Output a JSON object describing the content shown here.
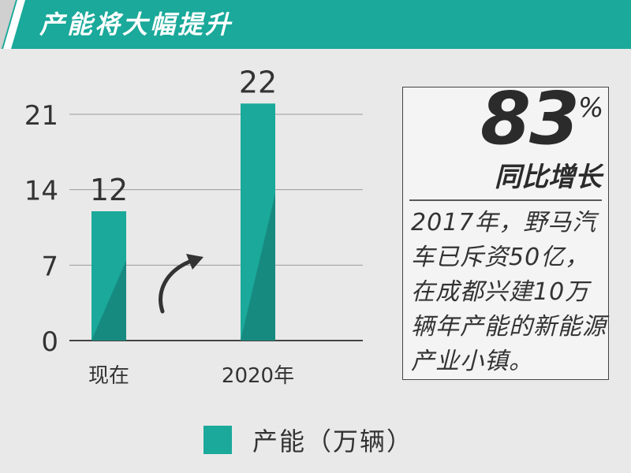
{
  "header": {
    "title": "产能将大幅提升",
    "color_primary": "#1aa99a"
  },
  "chart_data": {
    "type": "bar",
    "categories": [
      "现在",
      "2020年"
    ],
    "series": [
      {
        "name": "产能（万辆）",
        "values": [
          12,
          22
        ]
      }
    ],
    "data_labels": [
      "12",
      "22"
    ],
    "y_ticks": [
      "0",
      "7",
      "14",
      "21"
    ],
    "ylim": [
      0,
      21
    ],
    "grid": true,
    "legend_position": "bottom",
    "bar_color": "#1aa99a",
    "bar_shade_color": "#178a80"
  },
  "callout": {
    "percent_value": "83",
    "percent_sign": "%",
    "subtitle": "同比增长",
    "description": "2017年，野马汽车已斥资50亿，在成都兴建10万辆年产能的新能源产业小镇。"
  },
  "legend": {
    "label": "产能（万辆）"
  },
  "icons": [
    "arrow-curved-up-icon"
  ]
}
